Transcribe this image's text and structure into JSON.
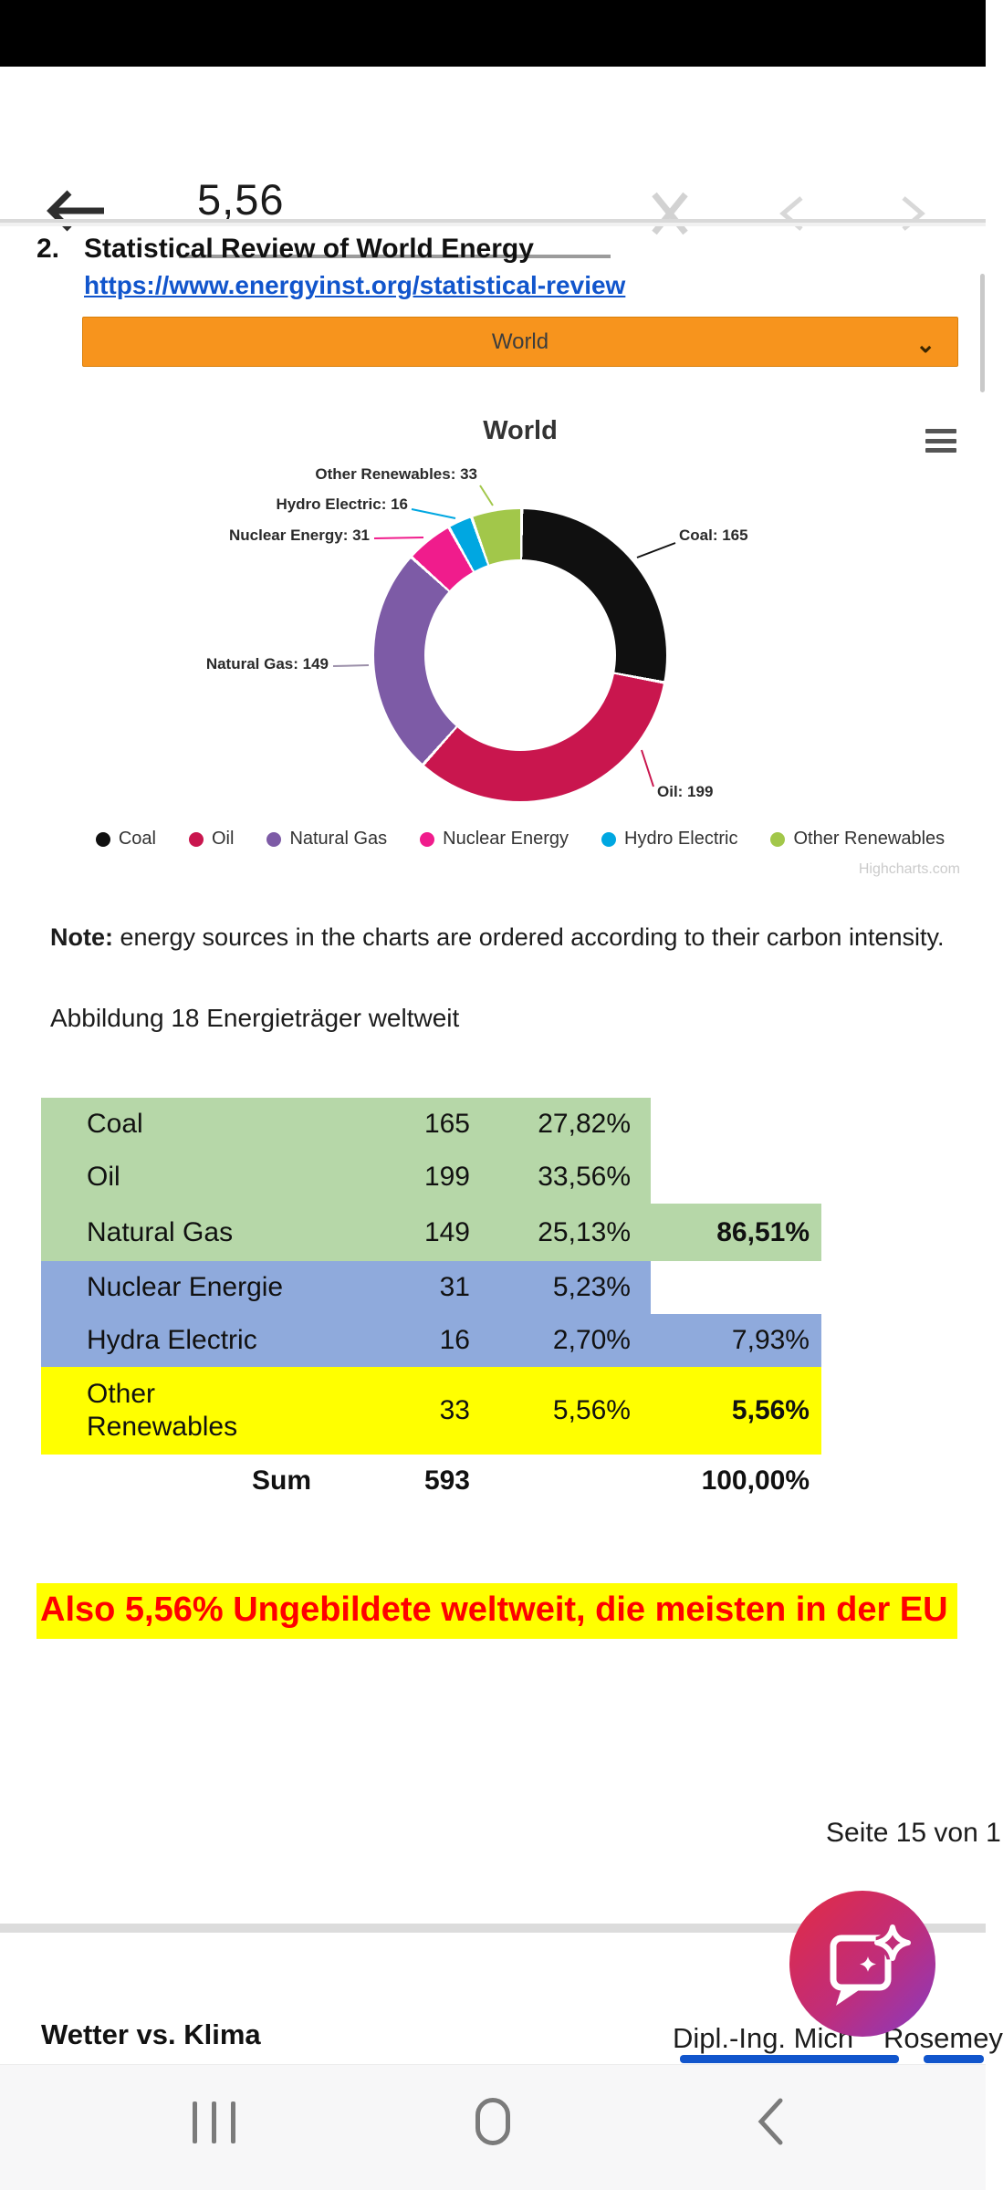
{
  "find_bar": {
    "query": "5,56"
  },
  "document": {
    "section_number": "2.",
    "section_title": "Statistical Review of World Energy",
    "link": "https://www.energyinst.org/statistical-review",
    "region_select": {
      "value": "World",
      "caret": "⌄"
    },
    "note_label": "Note:",
    "note_text": " energy sources in the charts are ordered according to their carbon intensity.",
    "caption": "Abbildung 18 Energieträger weltweit",
    "highlight_text": "Also 5,56% Ungebildete weltweit, die meisten in der EU",
    "page_footer": "Seite 15 von 1",
    "footer_left": "Wetter vs. Klima",
    "author_prefix": "Dipl.-Ing. Mich",
    "author_suffix": "Rosemey"
  },
  "chart_data": {
    "type": "pie",
    "subtype": "donut",
    "title": "World",
    "watermark": "Highcharts.com",
    "total": 593,
    "slices": [
      {
        "label": "Coal",
        "value": 165,
        "color": "#101010"
      },
      {
        "label": "Oil",
        "value": 199,
        "color": "#c9164e"
      },
      {
        "label": "Natural Gas",
        "value": 149,
        "color": "#7d5ba6"
      },
      {
        "label": "Nuclear Energy",
        "value": 31,
        "color": "#f01c8c"
      },
      {
        "label": "Hydro Electric",
        "value": 16,
        "color": "#00a7e1"
      },
      {
        "label": "Other Renewables",
        "value": 33,
        "color": "#a2c74a"
      }
    ],
    "legend_position": "bottom",
    "note": "energy sources ordered by carbon intensity"
  },
  "table": {
    "rows": [
      {
        "label": "Coal",
        "value": "165",
        "pct": "27,82%",
        "group_pct": "",
        "bg": "green",
        "group_bg": "white"
      },
      {
        "label": "Oil",
        "value": "199",
        "pct": "33,56%",
        "group_pct": "",
        "bg": "green",
        "group_bg": "white"
      },
      {
        "label": "Natural Gas",
        "value": "149",
        "pct": "25,13%",
        "group_pct": "86,51%",
        "bg": "green",
        "group_bg": "green",
        "group_bold": true
      },
      {
        "label": "Nuclear Energie",
        "value": "31",
        "pct": "5,23%",
        "group_pct": "",
        "bg": "blue",
        "group_bg": "white"
      },
      {
        "label": "Hydra Electric",
        "value": "16",
        "pct": "2,70%",
        "group_pct": "7,93%",
        "bg": "blue",
        "group_bg": "blue"
      },
      {
        "label": "Other\nRenewables",
        "value": "33",
        "pct": "5,56%",
        "group_pct": "5,56%",
        "bg": "yellow",
        "group_bg": "yellow",
        "group_bold": true
      },
      {
        "label": "Sum",
        "value": "593",
        "pct": "",
        "group_pct": "100,00%",
        "bg": "white",
        "group_bg": "white",
        "bold": true,
        "is_sum": true
      }
    ]
  },
  "colors": {
    "row_green": "#b6d7a8",
    "row_blue": "#8faadc",
    "row_yellow": "#ffff00",
    "select_orange": "#f7941d",
    "highlight_yellow": "#ffff00",
    "highlight_red": "#fe0000",
    "link_blue": "#1155cc",
    "fab_gradient": [
      "#df2b49",
      "#c02d7a",
      "#8f39b8"
    ]
  }
}
